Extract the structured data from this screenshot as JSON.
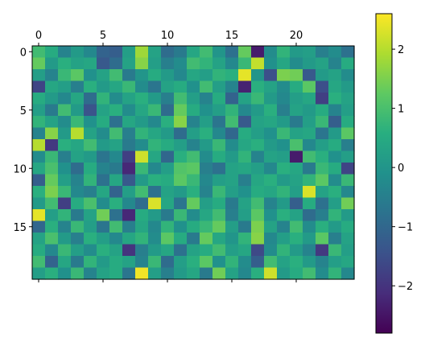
{
  "chart_data": {
    "type": "heatmap",
    "title": "",
    "xlabel": "",
    "ylabel": "",
    "n_rows": 20,
    "n_cols": 25,
    "x_ticks": [
      0,
      5,
      10,
      15,
      20
    ],
    "x_tick_labels": [
      "0",
      "5",
      "10",
      "15",
      "20"
    ],
    "x_tick_position": "top",
    "y_ticks": [
      0,
      5,
      10,
      15
    ],
    "y_tick_labels": [
      "0",
      "5",
      "10",
      "15"
    ],
    "colormap": "viridis",
    "clim": [
      -2.8,
      2.6
    ],
    "colorbar": {
      "ticks": [
        2,
        1,
        0,
        -1,
        -2
      ],
      "tick_labels": [
        "2",
        "1",
        "0",
        "−1",
        "−2"
      ],
      "placement": "right"
    },
    "grid": false,
    "values": [
      [
        0.9,
        0.5,
        -0.4,
        0.1,
        -0.3,
        -1.1,
        -1.2,
        0.2,
        1.8,
        0.3,
        -0.9,
        -0.6,
        0.4,
        0.9,
        0.0,
        -0.8,
        1.3,
        -2.4,
        -0.2,
        0.7,
        0.1,
        0.2,
        -0.5,
        -0.2,
        -0.8
      ],
      [
        1.3,
        0.1,
        0.6,
        0.3,
        0.4,
        -1.3,
        -0.9,
        0.3,
        1.6,
        0.2,
        -0.5,
        -0.2,
        0.9,
        0.7,
        0.3,
        -0.3,
        0.8,
        2.1,
        -0.1,
        0.4,
        -0.2,
        0.1,
        0.3,
        -0.4,
        0.5
      ],
      [
        0.2,
        -0.4,
        0.8,
        1.2,
        -0.1,
        0.3,
        0.9,
        -0.6,
        0.0,
        0.5,
        0.1,
        -0.3,
        0.4,
        0.2,
        0.7,
        0.6,
        2.4,
        0.0,
        -1.5,
        1.5,
        1.4,
        -1.3,
        0.1,
        0.3,
        -0.2
      ],
      [
        -1.7,
        0.4,
        0.2,
        -0.5,
        0.6,
        0.1,
        0.4,
        0.8,
        -0.2,
        -0.7,
        0.3,
        0.5,
        -0.1,
        0.9,
        0.2,
        -0.4,
        -2.3,
        0.6,
        0.3,
        -0.2,
        0.5,
        1.2,
        -1.5,
        0.4,
        0.1
      ],
      [
        0.5,
        0.1,
        -0.3,
        0.4,
        -0.9,
        0.7,
        -0.2,
        0.3,
        0.6,
        0.1,
        -0.5,
        0.9,
        0.2,
        -0.4,
        0.5,
        -1.1,
        0.3,
        0.8,
        0.1,
        -0.3,
        0.2,
        0.4,
        -1.8,
        0.6,
        0.3
      ],
      [
        0.2,
        -0.6,
        0.9,
        0.1,
        -1.4,
        0.3,
        0.6,
        -0.2,
        0.4,
        0.8,
        -0.9,
        1.3,
        0.5,
        -0.1,
        0.2,
        0.7,
        -0.3,
        0.1,
        0.6,
        -0.5,
        0.3,
        0.1,
        0.5,
        -0.4,
        0.2
      ],
      [
        0.7,
        0.3,
        -0.2,
        0.8,
        -0.1,
        0.5,
        -0.8,
        0.4,
        0.1,
        -0.3,
        0.6,
        1.6,
        -0.4,
        0.2,
        -0.7,
        0.9,
        -1.3,
        0.3,
        0.4,
        0.1,
        -0.6,
        0.2,
        0.8,
        -1.2,
        0.5
      ],
      [
        -0.4,
        1.6,
        0.1,
        2.0,
        0.3,
        -0.2,
        0.9,
        -0.5,
        0.7,
        0.4,
        0.1,
        -0.9,
        0.2,
        0.6,
        -0.3,
        -1.0,
        0.5,
        0.2,
        -0.1,
        0.8,
        0.3,
        0.4,
        -0.7,
        0.1,
        1.2
      ],
      [
        2.0,
        -1.9,
        0.6,
        0.4,
        0.9,
        0.1,
        0.3,
        -0.6,
        -0.2,
        0.7,
        0.5,
        0.2,
        -0.4,
        0.1,
        0.8,
        -0.2,
        0.4,
        0.6,
        0.1,
        -0.1,
        1.0,
        -0.3,
        0.2,
        0.5,
        -0.5
      ],
      [
        -0.2,
        0.8,
        -0.5,
        0.3,
        0.1,
        -0.7,
        -0.3,
        -1.8,
        2.2,
        0.4,
        -1.0,
        0.6,
        0.9,
        -0.2,
        0.5,
        0.1,
        0.7,
        -0.4,
        0.3,
        0.2,
        -2.4,
        0.9,
        0.6,
        -0.1,
        0.2
      ],
      [
        0.4,
        1.0,
        -0.1,
        -0.9,
        0.5,
        -0.4,
        -0.6,
        -2.2,
        0.8,
        -0.3,
        0.2,
        1.1,
        1.2,
        -0.5,
        -0.8,
        0.3,
        0.4,
        0.2,
        -0.3,
        0.6,
        0.4,
        -0.6,
        0.8,
        0.5,
        -1.7
      ],
      [
        -1.2,
        1.3,
        0.2,
        -0.4,
        0.7,
        -0.8,
        0.4,
        -1.3,
        0.1,
        0.6,
        0.5,
        1.2,
        0.8,
        -0.3,
        0.2,
        0.3,
        -0.5,
        0.4,
        0.6,
        0.1,
        0.3,
        0.7,
        1.2,
        -0.2,
        0.8
      ],
      [
        0.6,
        1.5,
        0.8,
        -0.3,
        -0.5,
        0.4,
        -1.1,
        0.2,
        0.9,
        -0.8,
        0.3,
        0.1,
        0.6,
        -0.4,
        0.8,
        0.2,
        -0.1,
        0.5,
        0.4,
        0.7,
        0.2,
        2.3,
        0.3,
        0.6,
        -0.3
      ],
      [
        0.1,
        0.9,
        -1.8,
        0.5,
        1.0,
        -0.2,
        0.6,
        -0.3,
        -0.9,
        2.3,
        0.4,
        -0.7,
        1.3,
        0.2,
        0.5,
        -0.6,
        0.3,
        0.9,
        -0.4,
        0.1,
        -1.2,
        0.5,
        -0.8,
        0.2,
        1.4
      ],
      [
        2.4,
        0.2,
        0.7,
        -0.6,
        0.3,
        1.4,
        -0.8,
        -2.2,
        0.5,
        0.1,
        -0.6,
        0.8,
        -0.2,
        0.4,
        0.9,
        -0.5,
        0.2,
        1.2,
        -0.1,
        0.6,
        0.3,
        -0.9,
        -0.5,
        0.7,
        0.1
      ],
      [
        -1.0,
        0.6,
        -0.4,
        0.8,
        0.2,
        -0.7,
        0.9,
        -0.5,
        0.4,
        -0.3,
        0.7,
        -0.1,
        0.5,
        0.8,
        1.3,
        0.2,
        -0.6,
        1.5,
        0.3,
        -0.4,
        0.9,
        -0.2,
        0.6,
        0.1,
        0.5
      ],
      [
        0.3,
        1.0,
        0.1,
        -0.5,
        0.6,
        0.2,
        -0.3,
        0.4,
        0.7,
        -0.2,
        1.2,
        0.5,
        -0.6,
        1.3,
        0.4,
        0.0,
        0.7,
        1.6,
        -0.3,
        0.2,
        0.6,
        0.1,
        1.2,
        -0.5,
        0.3
      ],
      [
        0.5,
        -0.3,
        0.8,
        0.2,
        -0.2,
        0.6,
        0.3,
        -2.0,
        -0.5,
        0.1,
        0.4,
        -0.8,
        0.3,
        0.5,
        0.9,
        0.2,
        0.4,
        -1.6,
        -0.2,
        0.7,
        0.1,
        -0.4,
        -1.9,
        0.8,
        0.2
      ],
      [
        0.9,
        -1.1,
        0.4,
        -0.6,
        0.7,
        0.1,
        0.5,
        0.3,
        -0.4,
        0.8,
        -0.9,
        0.2,
        0.6,
        1.2,
        -0.1,
        0.7,
        -0.2,
        -1.2,
        0.9,
        0.3,
        0.6,
        0.1,
        -0.4,
        0.2,
        0.4
      ],
      [
        0.2,
        0.6,
        -0.1,
        0.8,
        -0.4,
        0.3,
        0.5,
        -0.7,
        2.5,
        0.2,
        -0.5,
        0.1,
        0.4,
        -0.6,
        1.4,
        0.3,
        -0.3,
        0.6,
        2.2,
        0.1,
        0.5,
        0.9,
        -0.2,
        0.7,
        -0.3
      ]
    ]
  }
}
